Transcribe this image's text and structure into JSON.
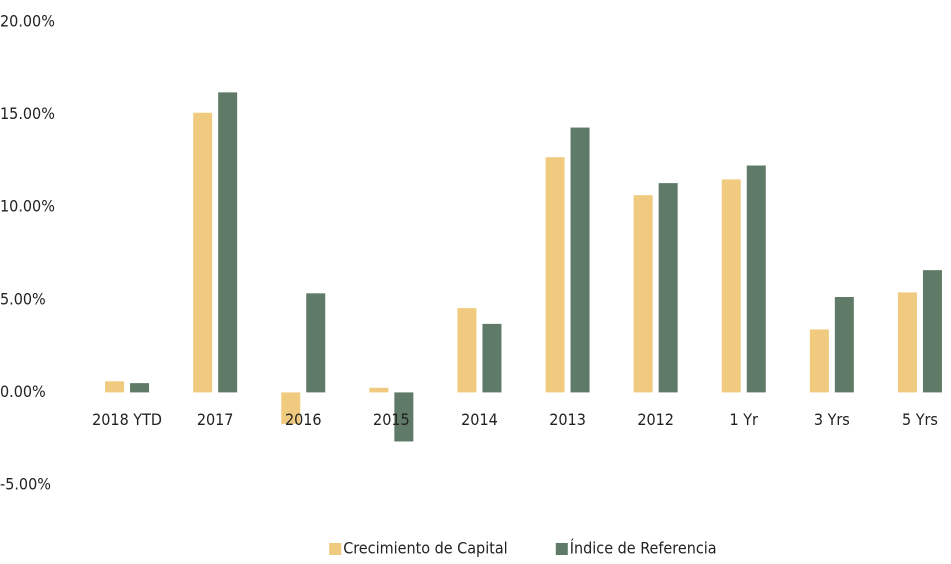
{
  "chart_data": {
    "type": "bar",
    "categories": [
      "2018 YTD",
      "2017",
      "2016",
      "2015",
      "2014",
      "2013",
      "2012",
      "1 Yr",
      "3 Yrs",
      "5 Yrs"
    ],
    "series": [
      {
        "name": "Crecimiento de Capital",
        "color": "#f0cb7f",
        "values": [
          0.6,
          15.1,
          -1.7,
          0.25,
          4.55,
          12.7,
          10.65,
          11.5,
          3.4,
          5.4
        ]
      },
      {
        "name": "Índice de Referencia",
        "color": "#5f7a66",
        "values": [
          0.5,
          16.2,
          5.35,
          -2.65,
          3.7,
          14.3,
          11.3,
          12.25,
          5.15,
          6.6
        ]
      }
    ],
    "ylim": [
      -5,
      20
    ],
    "yticks": [
      {
        "value": -5,
        "label": "-5.00%"
      },
      {
        "value": 0,
        "label": "0.00%"
      },
      {
        "value": 5,
        "label": "5.00%"
      },
      {
        "value": 10,
        "label": "10.00%"
      },
      {
        "value": 15,
        "label": "15.00%"
      },
      {
        "value": 20,
        "label": "20.00%"
      }
    ],
    "grid": false,
    "legend": "bottom"
  }
}
